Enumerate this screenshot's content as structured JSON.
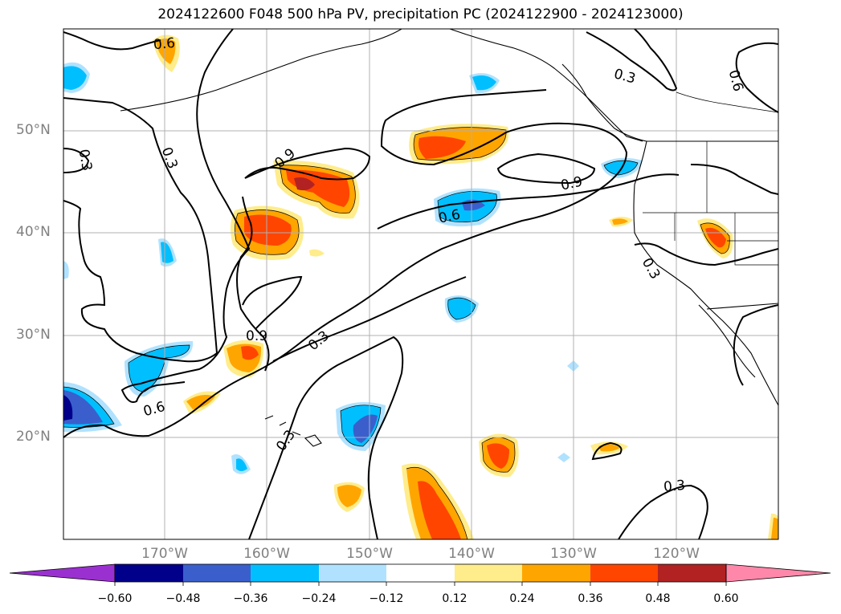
{
  "title": "2024122600 F048 500 hPa PV, precipitation PC (2024122900 - 2024123000)",
  "map": {
    "lon_range": [
      -180,
      -110
    ],
    "lat_range": [
      10,
      60
    ],
    "lat_labels": [
      "50°N",
      "40°N",
      "30°N",
      "20°N"
    ],
    "lon_labels": [
      "170°W",
      "160°W",
      "150°W",
      "140°W",
      "130°W",
      "120°W"
    ],
    "contour_labels": [
      "0.6",
      "0.3",
      "0.3",
      "0.9",
      "0.6",
      "0.9",
      "0.6",
      "0.3",
      "0.3",
      "0.9",
      "0.3",
      "0.6",
      "0.3",
      "0.3"
    ],
    "grid": true
  },
  "colorbar": {
    "ticks": [
      "−0.60",
      "−0.48",
      "−0.36",
      "−0.24",
      "−0.12",
      "0.12",
      "0.24",
      "0.36",
      "0.48",
      "0.60"
    ],
    "colors": [
      "#9b30d0",
      "#00008b",
      "#3a5fcd",
      "#00bfff",
      "#b0e2ff",
      "#ffffff",
      "#ffec8b",
      "#ffa500",
      "#ff4500",
      "#b22222",
      "#ff88aa"
    ]
  }
}
